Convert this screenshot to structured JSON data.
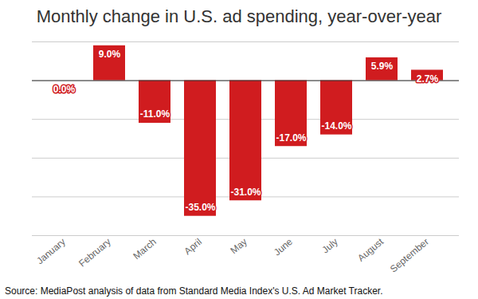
{
  "chart_data": {
    "type": "bar",
    "title": "Monthly change in U.S. ad spending, year-over-year",
    "caption": "Source: MediaPost analysis of data from Standard Media Index's U.S. Ad Market Tracker.",
    "categories": [
      "January",
      "February",
      "March",
      "April",
      "May",
      "June",
      "July",
      "August",
      "September"
    ],
    "values": [
      0,
      9,
      -11,
      -35,
      -31,
      -17,
      -14,
      5.9,
      2.7
    ],
    "value_labels": [
      "0.0%",
      "9.0%",
      "-11.0%",
      "-35.0%",
      "-31.0%",
      "-17.0%",
      "-14.0%",
      "5.9%",
      "2.7%"
    ],
    "color": "#d01c1f",
    "ylim": [
      -40,
      10
    ],
    "yticks": [
      -40,
      -30,
      -20,
      -10,
      0,
      10
    ],
    "grid": true,
    "data_labels": true,
    "tick_labels": "x"
  }
}
